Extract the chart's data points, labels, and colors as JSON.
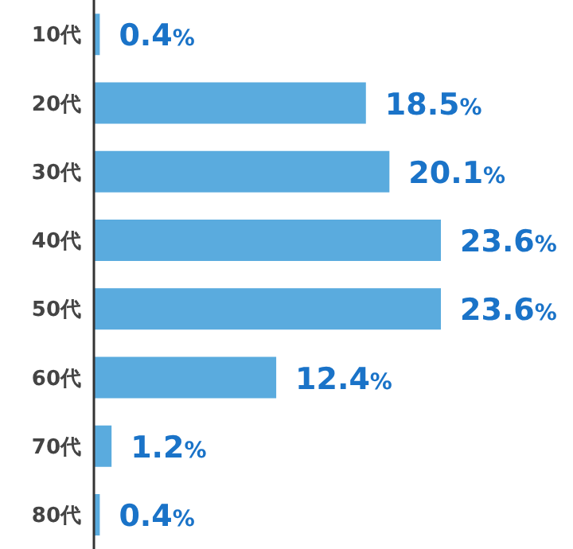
{
  "chart_data": {
    "type": "bar",
    "orientation": "horizontal",
    "categories": [
      "10代",
      "20代",
      "30代",
      "40代",
      "50代",
      "60代",
      "70代",
      "80代"
    ],
    "values": [
      0.4,
      18.5,
      20.1,
      23.6,
      23.6,
      12.4,
      1.2,
      0.4
    ],
    "value_labels": [
      "0.4%",
      "18.5%",
      "20.1%",
      "23.6%",
      "23.6%",
      "12.4%",
      "1.2%",
      "0.4%"
    ],
    "color": "#5aabde",
    "grid": false,
    "legend": false
  }
}
